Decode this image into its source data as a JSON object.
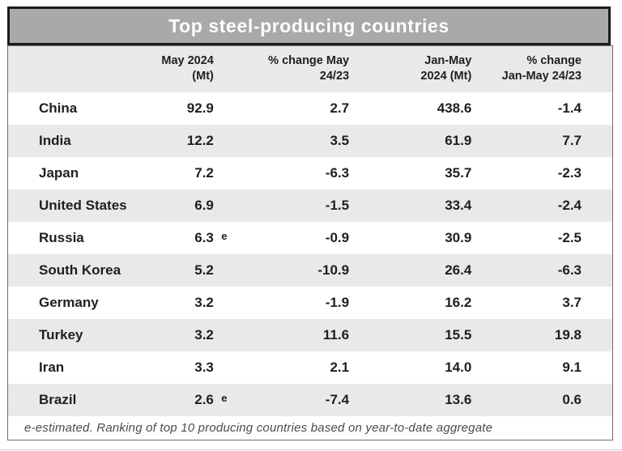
{
  "title": "Top steel-producing countries",
  "header": {
    "columns": [
      {
        "line1": "May 2024",
        "line2": "(Mt)"
      },
      {
        "line1": "% change May",
        "line2": "24/23"
      },
      {
        "line1": "Jan-May",
        "line2": "2024 (Mt)"
      },
      {
        "line1": "% change",
        "line2": "Jan-May 24/23"
      }
    ]
  },
  "rows": [
    {
      "country": "China",
      "may": "92.9",
      "note": "",
      "chg_may": "2.7",
      "jan_may": "438.6",
      "chg_jan_may": "-1.4"
    },
    {
      "country": "India",
      "may": "12.2",
      "note": "",
      "chg_may": "3.5",
      "jan_may": "61.9",
      "chg_jan_may": "7.7"
    },
    {
      "country": "Japan",
      "may": "7.2",
      "note": "",
      "chg_may": "-6.3",
      "jan_may": "35.7",
      "chg_jan_may": "-2.3"
    },
    {
      "country": "United States",
      "may": "6.9",
      "note": "",
      "chg_may": "-1.5",
      "jan_may": "33.4",
      "chg_jan_may": "-2.4"
    },
    {
      "country": "Russia",
      "may": "6.3",
      "note": "e",
      "chg_may": "-0.9",
      "jan_may": "30.9",
      "chg_jan_may": "-2.5"
    },
    {
      "country": "South Korea",
      "may": "5.2",
      "note": "",
      "chg_may": "-10.9",
      "jan_may": "26.4",
      "chg_jan_may": "-6.3"
    },
    {
      "country": "Germany",
      "may": "3.2",
      "note": "",
      "chg_may": "-1.9",
      "jan_may": "16.2",
      "chg_jan_may": "3.7"
    },
    {
      "country": "Turkey",
      "may": "3.2",
      "note": "",
      "chg_may": "11.6",
      "jan_may": "15.5",
      "chg_jan_may": "19.8"
    },
    {
      "country": "Iran",
      "may": "3.3",
      "note": "",
      "chg_may": "2.1",
      "jan_may": "14.0",
      "chg_jan_may": "9.1"
    },
    {
      "country": "Brazil",
      "may": "2.6",
      "note": "e",
      "chg_may": "-7.4",
      "jan_may": "13.6",
      "chg_jan_may": "0.6"
    }
  ],
  "footnote": "e-estimated. Ranking of top 10 producing countries based on year-to-date aggregate",
  "colors": {
    "title_bar_bg": "#a9a9a9",
    "title_text": "#ffffff",
    "title_border": "#1c1c1c",
    "stripe_bg": "#e9e9e9",
    "table_border": "#6f6f6f",
    "text": "#1f1f1f",
    "footnote_text": "#4b4b4b"
  },
  "chart_data": {
    "type": "table",
    "title": "Top steel-producing countries",
    "columns": [
      "",
      "May 2024 (Mt)",
      "% change May 24/23",
      "Jan-May 2024 (Mt)",
      "% change Jan-May 24/23"
    ],
    "rows": [
      [
        "China",
        92.9,
        2.7,
        438.6,
        -1.4
      ],
      [
        "India",
        12.2,
        3.5,
        61.9,
        7.7
      ],
      [
        "Japan",
        7.2,
        -6.3,
        35.7,
        -2.3
      ],
      [
        "United States",
        6.9,
        -1.5,
        33.4,
        -2.4
      ],
      [
        "Russia",
        6.3,
        -0.9,
        30.9,
        -2.5
      ],
      [
        "South Korea",
        5.2,
        -10.9,
        26.4,
        -6.3
      ],
      [
        "Germany",
        3.2,
        -1.9,
        16.2,
        3.7
      ],
      [
        "Turkey",
        3.2,
        11.6,
        15.5,
        19.8
      ],
      [
        "Iran",
        3.3,
        2.1,
        14.0,
        9.1
      ],
      [
        "Brazil",
        2.6,
        -7.4,
        13.6,
        0.6
      ]
    ],
    "estimated_flags": [
      {
        "row": "Russia",
        "column": "May 2024 (Mt)",
        "flag": "e"
      },
      {
        "row": "Brazil",
        "column": "May 2024 (Mt)",
        "flag": "e"
      }
    ],
    "footnote": "e-estimated. Ranking of top 10 producing countries based on year-to-date aggregate"
  }
}
